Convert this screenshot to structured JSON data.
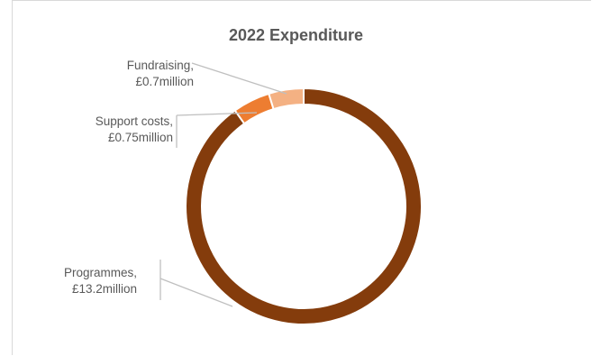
{
  "chart_data": {
    "type": "pie",
    "variant": "doughnut",
    "title": "2022 Expenditure",
    "categories": [
      "Programmes",
      "Support costs",
      "Fundraising"
    ],
    "values": [
      13.2,
      0.75,
      0.7
    ],
    "unit": "£ million",
    "data_labels": [
      {
        "category": "Programmes,",
        "value": "£13.2million"
      },
      {
        "category": "Support costs,",
        "value": "£0.75million"
      },
      {
        "category": "Fundraising,",
        "value": "£0.7million"
      }
    ],
    "colors": [
      "#843c0c",
      "#ed7d31",
      "#f4b183"
    ],
    "legend": "none",
    "grid": false
  }
}
